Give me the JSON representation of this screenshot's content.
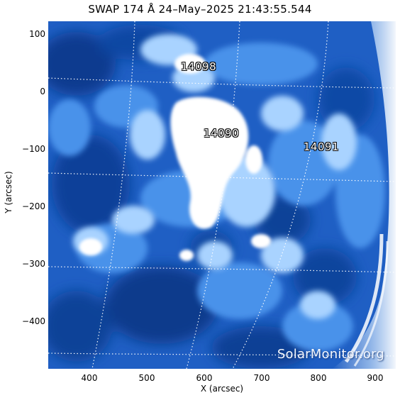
{
  "title": "SWAP 174 Å 24–May–2025 21:43:55.544",
  "x_axis": {
    "label": "X (arcsec)",
    "ticks": [
      400,
      500,
      600,
      700,
      800,
      900
    ],
    "range": [
      330,
      935
    ]
  },
  "y_axis": {
    "label": "Y (arcsec)",
    "ticks": [
      100,
      0,
      -100,
      -200,
      -300,
      -400
    ],
    "range": [
      -480,
      125
    ]
  },
  "active_regions": [
    {
      "id": "ar-14098",
      "label": "14098"
    },
    {
      "id": "ar-14090",
      "label": "14090"
    },
    {
      "id": "ar-14091",
      "label": "14091"
    }
  ],
  "watermark": "SolarMonitor.org",
  "colors": {
    "deep": "#0a3a8c",
    "mid": "#2f7ce0",
    "light": "#a9d3ff",
    "bright": "#ffffff",
    "grid": "#ffffff"
  }
}
